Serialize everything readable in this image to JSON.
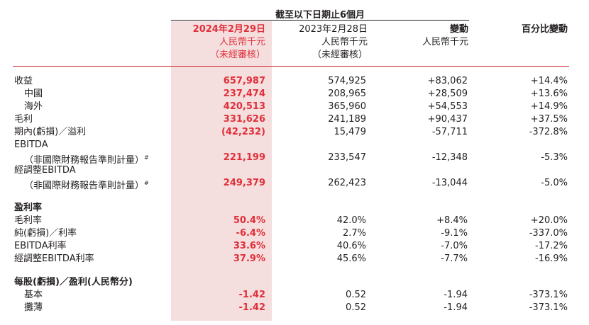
{
  "header": {
    "period_title": "截至以下日期止6個月",
    "columns": [
      {
        "line1": "2024年2月29日",
        "line2": "人民幣千元",
        "line3": "（未經審核）"
      },
      {
        "line1": "2023年2月28日",
        "line2": "人民幣千元",
        "line3": "（未經審核）"
      },
      {
        "line1": "變動",
        "line2": "人民幣千元",
        "line3": ""
      },
      {
        "line1": "百分比變動",
        "line2": "",
        "line3": ""
      }
    ]
  },
  "rows": [
    {
      "label": "收益",
      "v1": "657,987",
      "v2": "574,925",
      "v3": "+83,062",
      "v4": "+14.4%"
    },
    {
      "label": "中國",
      "v1": "237,474",
      "v2": "208,965",
      "v3": "+28,509",
      "v4": "+13.6%"
    },
    {
      "label": "海外",
      "v1": "420,513",
      "v2": "365,960",
      "v3": "+54,553",
      "v4": "+14.9%"
    },
    {
      "label": "毛利",
      "v1": "331,626",
      "v2": "241,189",
      "v3": "+90,437",
      "v4": "+37.5%"
    },
    {
      "label": "期內(虧損)／溢利",
      "v1": "(42,232)",
      "v2": "15,479",
      "v3": "-57,711",
      "v4": "-372.8%"
    },
    {
      "label": "EBITDA",
      "v1": "",
      "v2": "",
      "v3": "",
      "v4": ""
    },
    {
      "label": "（非國際財務報告準則計量）",
      "sup": "#",
      "v1": "221,199",
      "v2": "233,547",
      "v3": "-12,348",
      "v4": "-5.3%"
    },
    {
      "label": "經調整EBITDA",
      "v1": "",
      "v2": "",
      "v3": "",
      "v4": ""
    },
    {
      "label": "（非國際財務報告準則計量）",
      "sup": "#",
      "v1": "249,379",
      "v2": "262,423",
      "v3": "-13,044",
      "v4": "-5.0%"
    },
    {
      "label": "盈利率",
      "v1": "",
      "v2": "",
      "v3": "",
      "v4": ""
    },
    {
      "label": "毛利率",
      "v1": "50.4%",
      "v2": "42.0%",
      "v3": "+8.4%",
      "v4": "+20.0%"
    },
    {
      "label": "純(虧損)／利率",
      "v1": "-6.4%",
      "v2": "2.7%",
      "v3": "-9.1%",
      "v4": "-337.0%"
    },
    {
      "label": "EBITDA利率",
      "v1": "33.6%",
      "v2": "40.6%",
      "v3": "-7.0%",
      "v4": "-17.2%"
    },
    {
      "label": "經調整EBITDA利率",
      "v1": "37.9%",
      "v2": "45.6%",
      "v3": "-7.7%",
      "v4": "-16.9%"
    },
    {
      "label": "每股(虧損)／盈利(人民幣分)",
      "v1": "",
      "v2": "",
      "v3": "",
      "v4": ""
    },
    {
      "label": "基本",
      "v1": "-1.42",
      "v2": "0.52",
      "v3": "-1.94",
      "v4": "-373.1%"
    },
    {
      "label": "攤薄",
      "v1": "-1.42",
      "v2": "0.52",
      "v3": "-1.94",
      "v4": "-373.1%"
    }
  ]
}
